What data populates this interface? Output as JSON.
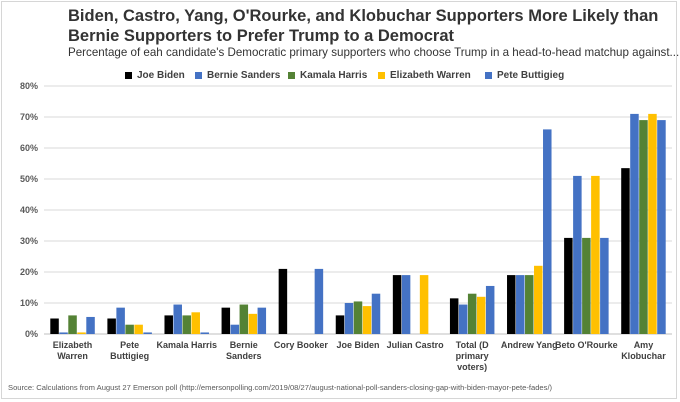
{
  "header": {
    "title": "Biden, Castro, Yang, O'Rourke, and Klobuchar Supporters More Likely than Bernie Supporters to Prefer Trump to a Democrat",
    "subtitle": "Percentage of eah candidate's Democratic primary supporters who choose Trump in a head-to-head matchup against..."
  },
  "footer": {
    "source": "Source: Calculations from August 27 Emerson poll (http://emersonpolling.com/2019/08/27/august-national-poll-sanders-closing-gap-with-biden-mayor-pete-fades/)"
  },
  "chart_data": {
    "type": "bar",
    "title": "Biden, Castro, Yang, O'Rourke, and Klobuchar Supporters More Likely than Bernie Supporters to Prefer Trump to a Democrat",
    "subtitle": "Percentage of eah candidate's Democratic primary supporters who choose Trump in a head-to-head matchup against...",
    "ylim": [
      0,
      80
    ],
    "yticks": [
      "0%",
      "10%",
      "20%",
      "30%",
      "40%",
      "50%",
      "60%",
      "70%",
      "80%"
    ],
    "grid": true,
    "legend_position": "top",
    "categories": [
      [
        "Elizabeth",
        "Warren"
      ],
      [
        "Pete",
        "Buttigieg"
      ],
      [
        "Kamala Harris"
      ],
      [
        "Bernie",
        "Sanders"
      ],
      [
        "Cory Booker"
      ],
      [
        "Joe Biden"
      ],
      [
        "Julian Castro"
      ],
      [
        "Total (D",
        "primary",
        "voters)"
      ],
      [
        "Andrew Yang"
      ],
      [
        "Beto O'Rourke"
      ],
      [
        "Amy",
        "Klobuchar"
      ]
    ],
    "series": [
      {
        "name": "Joe Biden",
        "color": "#000000",
        "values": [
          5,
          5,
          6,
          8.5,
          21,
          6,
          19,
          11.5,
          19,
          31,
          53.5
        ]
      },
      {
        "name": "Bernie Sanders",
        "color": "#4472C4",
        "values": [
          0.5,
          8.5,
          9.5,
          3,
          0,
          10,
          19,
          9.5,
          19,
          51,
          71
        ]
      },
      {
        "name": "Kamala Harris",
        "color": "#548235",
        "values": [
          6,
          3,
          6,
          9.5,
          0,
          10.5,
          0,
          13,
          19,
          31,
          69
        ]
      },
      {
        "name": "Elizabeth Warren",
        "color": "#FFC000",
        "values": [
          0.5,
          3,
          7,
          6.5,
          0,
          9,
          19,
          12,
          22,
          51,
          71
        ]
      },
      {
        "name": "Pete Buttigieg",
        "color": "#4472C4",
        "values": [
          5.5,
          0.5,
          0.5,
          8.5,
          21,
          13,
          0,
          15.5,
          66,
          31,
          69
        ]
      }
    ]
  }
}
